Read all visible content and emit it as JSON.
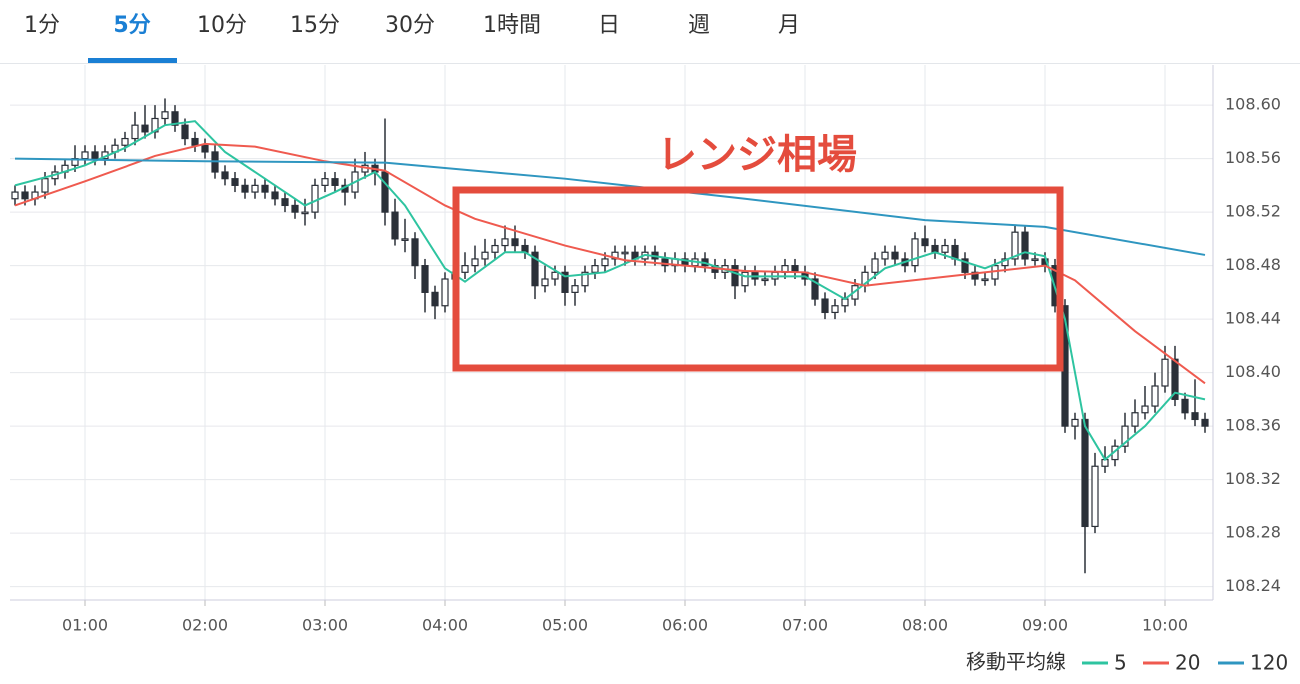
{
  "tabs": [
    "1分",
    "5分",
    "10分",
    "15分",
    "30分",
    "1時間",
    "日",
    "週",
    "月"
  ],
  "active_tab": "5分",
  "chart_data": {
    "type": "candlestick",
    "annotation": "レンジ相場",
    "legend_title": "移動平均線",
    "xlim": [
      22.5,
      624
    ],
    "ylim": [
      108.23,
      108.63
    ],
    "xticks": [
      {
        "value": 60,
        "label": "01:00"
      },
      {
        "value": 120,
        "label": "02:00"
      },
      {
        "value": 180,
        "label": "03:00"
      },
      {
        "value": 240,
        "label": "04:00"
      },
      {
        "value": 300,
        "label": "05:00"
      },
      {
        "value": 360,
        "label": "06:00"
      },
      {
        "value": 420,
        "label": "07:00"
      },
      {
        "value": 480,
        "label": "08:00"
      },
      {
        "value": 540,
        "label": "09:00"
      },
      {
        "value": 600,
        "label": "10:00"
      }
    ],
    "yticks": [
      {
        "value": 108.6,
        "label": "108.60"
      },
      108.56,
      108.52,
      108.48,
      108.44,
      {
        "value": 108.4,
        "label": "108.40"
      },
      108.36,
      108.32,
      108.28,
      108.24
    ],
    "grid": true,
    "up_color": "#ffffff",
    "down_color": "#2b3038",
    "x": [
      25,
      30,
      35,
      40,
      45,
      50,
      55,
      60,
      65,
      70,
      75,
      80,
      85,
      90,
      95,
      100,
      105,
      110,
      115,
      120,
      125,
      130,
      135,
      140,
      145,
      150,
      155,
      160,
      165,
      170,
      175,
      180,
      185,
      190,
      195,
      200,
      205,
      210,
      215,
      220,
      225,
      230,
      235,
      240,
      245,
      250,
      255,
      260,
      265,
      270,
      275,
      280,
      285,
      290,
      295,
      300,
      305,
      310,
      315,
      320,
      325,
      330,
      335,
      340,
      345,
      350,
      355,
      360,
      365,
      370,
      375,
      380,
      385,
      390,
      395,
      400,
      405,
      410,
      415,
      420,
      425,
      430,
      435,
      440,
      445,
      450,
      455,
      460,
      465,
      470,
      475,
      480,
      485,
      490,
      495,
      500,
      505,
      510,
      515,
      520,
      525,
      530,
      535,
      540,
      545,
      550,
      555,
      560,
      565,
      570,
      575,
      580,
      585,
      590,
      595,
      600,
      605,
      610,
      615,
      620
    ],
    "candles": [
      [
        108.53,
        108.54,
        108.525,
        108.535
      ],
      [
        108.535,
        108.54,
        108.525,
        108.53
      ],
      [
        108.53,
        108.54,
        108.525,
        108.535
      ],
      [
        108.535,
        108.55,
        108.53,
        108.545
      ],
      [
        108.545,
        108.555,
        108.54,
        108.55
      ],
      [
        108.55,
        108.56,
        108.545,
        108.555
      ],
      [
        108.555,
        108.57,
        108.55,
        108.56
      ],
      [
        108.56,
        108.57,
        108.555,
        108.565
      ],
      [
        108.565,
        108.57,
        108.555,
        108.56
      ],
      [
        108.56,
        108.57,
        108.555,
        108.565
      ],
      [
        108.565,
        108.575,
        108.56,
        108.57
      ],
      [
        108.57,
        108.58,
        108.565,
        108.575
      ],
      [
        108.575,
        108.595,
        108.57,
        108.585
      ],
      [
        108.585,
        108.6,
        108.575,
        108.58
      ],
      [
        108.58,
        108.6,
        108.575,
        108.59
      ],
      [
        108.59,
        108.605,
        108.585,
        108.595
      ],
      [
        108.595,
        108.6,
        108.58,
        108.585
      ],
      [
        108.585,
        108.59,
        108.57,
        108.575
      ],
      [
        108.575,
        108.58,
        108.565,
        108.57
      ],
      [
        108.57,
        108.575,
        108.56,
        108.565
      ],
      [
        108.565,
        108.57,
        108.545,
        108.55
      ],
      [
        108.55,
        108.555,
        108.54,
        108.545
      ],
      [
        108.545,
        108.55,
        108.535,
        108.54
      ],
      [
        108.54,
        108.545,
        108.53,
        108.535
      ],
      [
        108.535,
        108.545,
        108.53,
        108.54
      ],
      [
        108.54,
        108.545,
        108.53,
        108.535
      ],
      [
        108.535,
        108.54,
        108.525,
        108.53
      ],
      [
        108.53,
        108.535,
        108.52,
        108.525
      ],
      [
        108.525,
        108.53,
        108.515,
        108.52
      ],
      [
        108.52,
        108.53,
        108.51,
        108.52
      ],
      [
        108.52,
        108.545,
        108.515,
        108.54
      ],
      [
        108.54,
        108.55,
        108.535,
        108.545
      ],
      [
        108.545,
        108.55,
        108.535,
        108.54
      ],
      [
        108.54,
        108.545,
        108.525,
        108.535
      ],
      [
        108.535,
        108.56,
        108.53,
        108.55
      ],
      [
        108.55,
        108.565,
        108.545,
        108.555
      ],
      [
        108.555,
        108.56,
        108.54,
        108.55
      ],
      [
        108.55,
        108.59,
        108.51,
        108.52
      ],
      [
        108.52,
        108.53,
        108.495,
        108.5
      ],
      [
        108.5,
        108.515,
        108.49,
        108.5
      ],
      [
        108.5,
        108.505,
        108.47,
        108.48
      ],
      [
        108.48,
        108.485,
        108.445,
        108.46
      ],
      [
        108.46,
        108.465,
        108.44,
        108.45
      ],
      [
        108.45,
        108.475,
        108.445,
        108.47
      ],
      [
        108.47,
        108.485,
        108.465,
        108.475
      ],
      [
        108.475,
        108.49,
        108.47,
        108.48
      ],
      [
        108.48,
        108.495,
        108.475,
        108.485
      ],
      [
        108.485,
        108.5,
        108.48,
        108.49
      ],
      [
        108.49,
        108.5,
        108.485,
        108.495
      ],
      [
        108.495,
        108.51,
        108.49,
        108.5
      ],
      [
        108.5,
        108.51,
        108.49,
        108.495
      ],
      [
        108.495,
        108.5,
        108.485,
        108.49
      ],
      [
        108.49,
        108.495,
        108.455,
        108.465
      ],
      [
        108.465,
        108.48,
        108.46,
        108.47
      ],
      [
        108.47,
        108.48,
        108.465,
        108.475
      ],
      [
        108.475,
        108.48,
        108.45,
        108.46
      ],
      [
        108.46,
        108.47,
        108.45,
        108.465
      ],
      [
        108.465,
        108.48,
        108.46,
        108.475
      ],
      [
        108.475,
        108.485,
        108.47,
        108.48
      ],
      [
        108.48,
        108.49,
        108.475,
        108.485
      ],
      [
        108.485,
        108.495,
        108.48,
        108.49
      ],
      [
        108.49,
        108.495,
        108.48,
        108.49
      ],
      [
        108.49,
        108.495,
        108.48,
        108.485
      ],
      [
        108.485,
        108.495,
        108.48,
        108.49
      ],
      [
        108.49,
        108.495,
        108.48,
        108.485
      ],
      [
        108.485,
        108.49,
        108.475,
        108.48
      ],
      [
        108.48,
        108.49,
        108.475,
        108.485
      ],
      [
        108.485,
        108.49,
        108.475,
        108.48
      ],
      [
        108.48,
        108.49,
        108.475,
        108.485
      ],
      [
        108.485,
        108.49,
        108.475,
        108.48
      ],
      [
        108.48,
        108.485,
        108.47,
        108.475
      ],
      [
        108.475,
        108.485,
        108.47,
        108.48
      ],
      [
        108.48,
        108.485,
        108.455,
        108.465
      ],
      [
        108.465,
        108.48,
        108.46,
        108.475
      ],
      [
        108.475,
        108.48,
        108.465,
        108.47
      ],
      [
        108.47,
        108.475,
        108.465,
        108.47
      ],
      [
        108.47,
        108.48,
        108.465,
        108.475
      ],
      [
        108.475,
        108.485,
        108.47,
        108.48
      ],
      [
        108.48,
        108.485,
        108.47,
        108.475
      ],
      [
        108.475,
        108.48,
        108.465,
        108.47
      ],
      [
        108.47,
        108.475,
        108.45,
        108.455
      ],
      [
        108.455,
        108.46,
        108.44,
        108.445
      ],
      [
        108.445,
        108.455,
        108.44,
        108.45
      ],
      [
        108.45,
        108.46,
        108.445,
        108.455
      ],
      [
        108.455,
        108.47,
        108.45,
        108.465
      ],
      [
        108.465,
        108.48,
        108.46,
        108.475
      ],
      [
        108.475,
        108.49,
        108.47,
        108.485
      ],
      [
        108.485,
        108.495,
        108.48,
        108.49
      ],
      [
        108.49,
        108.495,
        108.48,
        108.485
      ],
      [
        108.485,
        108.49,
        108.475,
        108.48
      ],
      [
        108.48,
        108.505,
        108.475,
        108.5
      ],
      [
        108.5,
        108.51,
        108.49,
        108.495
      ],
      [
        108.495,
        108.5,
        108.485,
        108.49
      ],
      [
        108.49,
        108.5,
        108.485,
        108.495
      ],
      [
        108.495,
        108.5,
        108.48,
        108.485
      ],
      [
        108.485,
        108.49,
        108.47,
        108.475
      ],
      [
        108.475,
        108.48,
        108.465,
        108.47
      ],
      [
        108.47,
        108.475,
        108.465,
        108.47
      ],
      [
        108.47,
        108.485,
        108.465,
        108.48
      ],
      [
        108.48,
        108.49,
        108.475,
        108.485
      ],
      [
        108.485,
        108.51,
        108.48,
        108.505
      ],
      [
        108.505,
        108.51,
        108.48,
        108.485
      ],
      [
        108.485,
        108.49,
        108.48,
        108.485
      ],
      [
        108.485,
        108.49,
        108.475,
        108.48
      ],
      [
        108.48,
        108.485,
        108.445,
        108.45
      ],
      [
        108.45,
        108.455,
        108.355,
        108.36
      ],
      [
        108.36,
        108.37,
        108.35,
        108.365
      ],
      [
        108.365,
        108.37,
        108.25,
        108.285
      ],
      [
        108.285,
        108.34,
        108.28,
        108.33
      ],
      [
        108.33,
        108.345,
        108.325,
        108.335
      ],
      [
        108.335,
        108.35,
        108.33,
        108.345
      ],
      [
        108.345,
        108.37,
        108.34,
        108.36
      ],
      [
        108.36,
        108.38,
        108.355,
        108.37
      ],
      [
        108.37,
        108.39,
        108.365,
        108.375
      ],
      [
        108.375,
        108.4,
        108.37,
        108.39
      ],
      [
        108.39,
        108.42,
        108.385,
        108.41
      ],
      [
        108.41,
        108.42,
        108.375,
        108.38
      ],
      [
        108.38,
        108.385,
        108.365,
        108.37
      ],
      [
        108.37,
        108.395,
        108.36,
        108.365
      ],
      [
        108.365,
        108.37,
        108.355,
        108.36
      ]
    ],
    "series": [
      {
        "name": "5",
        "color": "#2ec4a0",
        "x": [
          25,
          45,
          60,
          80,
          100,
          115,
          130,
          150,
          170,
          185,
          205,
          220,
          240,
          250,
          270,
          280,
          300,
          320,
          340,
          370,
          390,
          420,
          440,
          460,
          485,
          510,
          530,
          540,
          550,
          560,
          570,
          590,
          605,
          620
        ],
        "values": [
          108.54,
          108.548,
          108.555,
          108.568,
          108.585,
          108.588,
          108.565,
          108.545,
          108.525,
          108.535,
          108.55,
          108.525,
          108.478,
          108.468,
          108.49,
          108.49,
          108.472,
          108.475,
          108.488,
          108.482,
          108.472,
          108.472,
          108.455,
          108.478,
          108.49,
          108.478,
          108.49,
          108.487,
          108.44,
          108.36,
          108.335,
          108.36,
          108.385,
          108.38
        ]
      },
      {
        "name": "20",
        "color": "#ef5a4f",
        "x": [
          25,
          60,
          95,
          120,
          145,
          180,
          210,
          240,
          255,
          300,
          330,
          390,
          420,
          450,
          480,
          540,
          555,
          585,
          620
        ],
        "values": [
          108.525,
          108.543,
          108.562,
          108.571,
          108.569,
          108.558,
          108.551,
          108.525,
          108.515,
          108.495,
          108.484,
          108.476,
          108.475,
          108.465,
          108.47,
          108.48,
          108.469,
          108.431,
          108.392
        ]
      },
      {
        "name": "120",
        "color": "#2f96c0",
        "x": [
          25,
          120,
          210,
          300,
          390,
          480,
          540,
          620
        ],
        "values": [
          108.56,
          108.558,
          108.557,
          108.545,
          108.53,
          108.514,
          108.509,
          108.488
        ]
      }
    ]
  }
}
